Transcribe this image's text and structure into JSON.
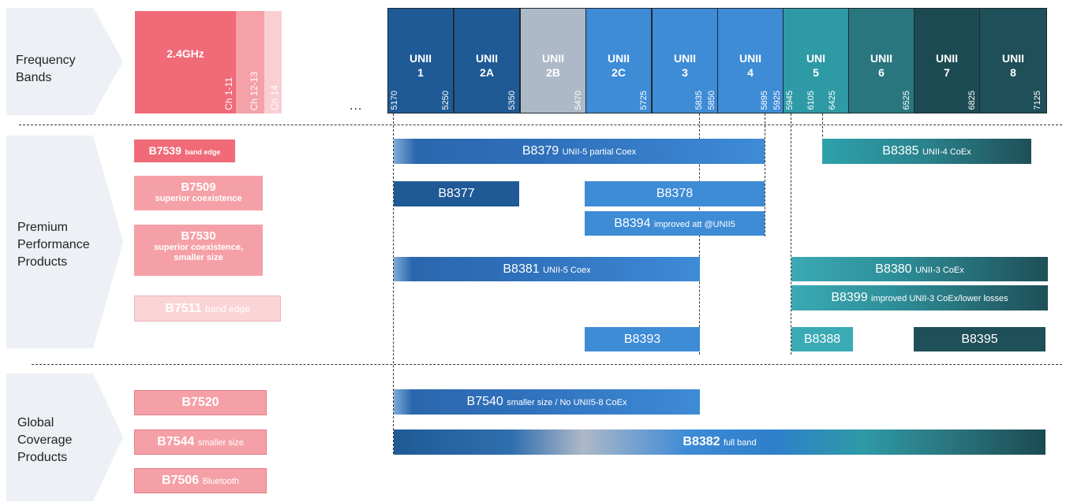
{
  "rows": {
    "frequency_bands": "Frequency\nBands",
    "premium": "Premium\nPerformance\nProducts",
    "global": "Global\nCoverage\nProducts"
  },
  "band24": {
    "label": "2.4GHz",
    "ch1": "Ch 1-11",
    "ch2": "Ch 12-13",
    "ch3": "Ch 14"
  },
  "ellipsis": "...",
  "bands": [
    {
      "l1": "UNII",
      "l2": "1",
      "f1": "5170",
      "f2": "5250",
      "color": "#1f5a96"
    },
    {
      "l1": "UNII",
      "l2": "2A",
      "f2": "5350",
      "color": "#1f5a96"
    },
    {
      "l1": "UNII",
      "l2": "2B",
      "f2": "5470",
      "color": "#adb8c8"
    },
    {
      "l1": "UNII",
      "l2": "2C",
      "f2": "5725",
      "color": "#3e8bd6"
    },
    {
      "l1": "UNII",
      "l2": "3",
      "f2": "5835",
      "f3": "5850",
      "color": "#3e8bd6"
    },
    {
      "l1": "UNII",
      "l2": "4",
      "f2": "5895",
      "f3": "5925",
      "color": "#3e8bd6"
    },
    {
      "l1": "UNI",
      "l2": "5",
      "f1": "5945",
      "f2": "6105",
      "f3": "6425",
      "color": "#2e9aa6"
    },
    {
      "l1": "UNII",
      "l2": "6",
      "f2": "6525",
      "color": "#2a767f"
    },
    {
      "l1": "UNII",
      "l2": "7",
      "f2": "6825",
      "color": "#1c4a52"
    },
    {
      "l1": "UNII",
      "l2": "8",
      "f2": "7125",
      "color": "#1f4f58"
    }
  ],
  "left_products": {
    "b7539": {
      "name": "B7539",
      "sub": "band edge"
    },
    "b7509": {
      "name": "B7509",
      "sub": "superior coexistence"
    },
    "b7530": {
      "name": "B7530",
      "sub1": "superior coexistence,",
      "sub2": "smaller size"
    },
    "b7511": {
      "name": "B7511",
      "sub": "band edge"
    },
    "b7520": {
      "name": "B7520"
    },
    "b7544": {
      "name": "B7544",
      "sub": "smaller size"
    },
    "b7506": {
      "name": "B7506",
      "sub": "Bluetooth"
    }
  },
  "bars": {
    "b8379": {
      "name": "B8379",
      "sub": "UNII-5 partial Coex"
    },
    "b8385": {
      "name": "B8385",
      "sub": "UNII-4 CoEx"
    },
    "b8377": {
      "name": "B8377"
    },
    "b8378": {
      "name": "B8378"
    },
    "b8394": {
      "name": "B8394",
      "sub": "improved att @UNII5"
    },
    "b8381": {
      "name": "B8381",
      "sub": "UNII-5 Coex"
    },
    "b8380": {
      "name": "B8380",
      "sub": "UNII-3 CoEx"
    },
    "b8399": {
      "name": "B8399",
      "sub": "improved UNII-3 CoEx/lower losses"
    },
    "b8393": {
      "name": "B8393"
    },
    "b8388": {
      "name": "B8388"
    },
    "b8395": {
      "name": "B8395"
    },
    "b7540": {
      "name": "B7540",
      "sub": "smaller size / No UNII5-8 CoEx"
    },
    "b8382": {
      "name": "B8382",
      "sub": "full band"
    }
  }
}
